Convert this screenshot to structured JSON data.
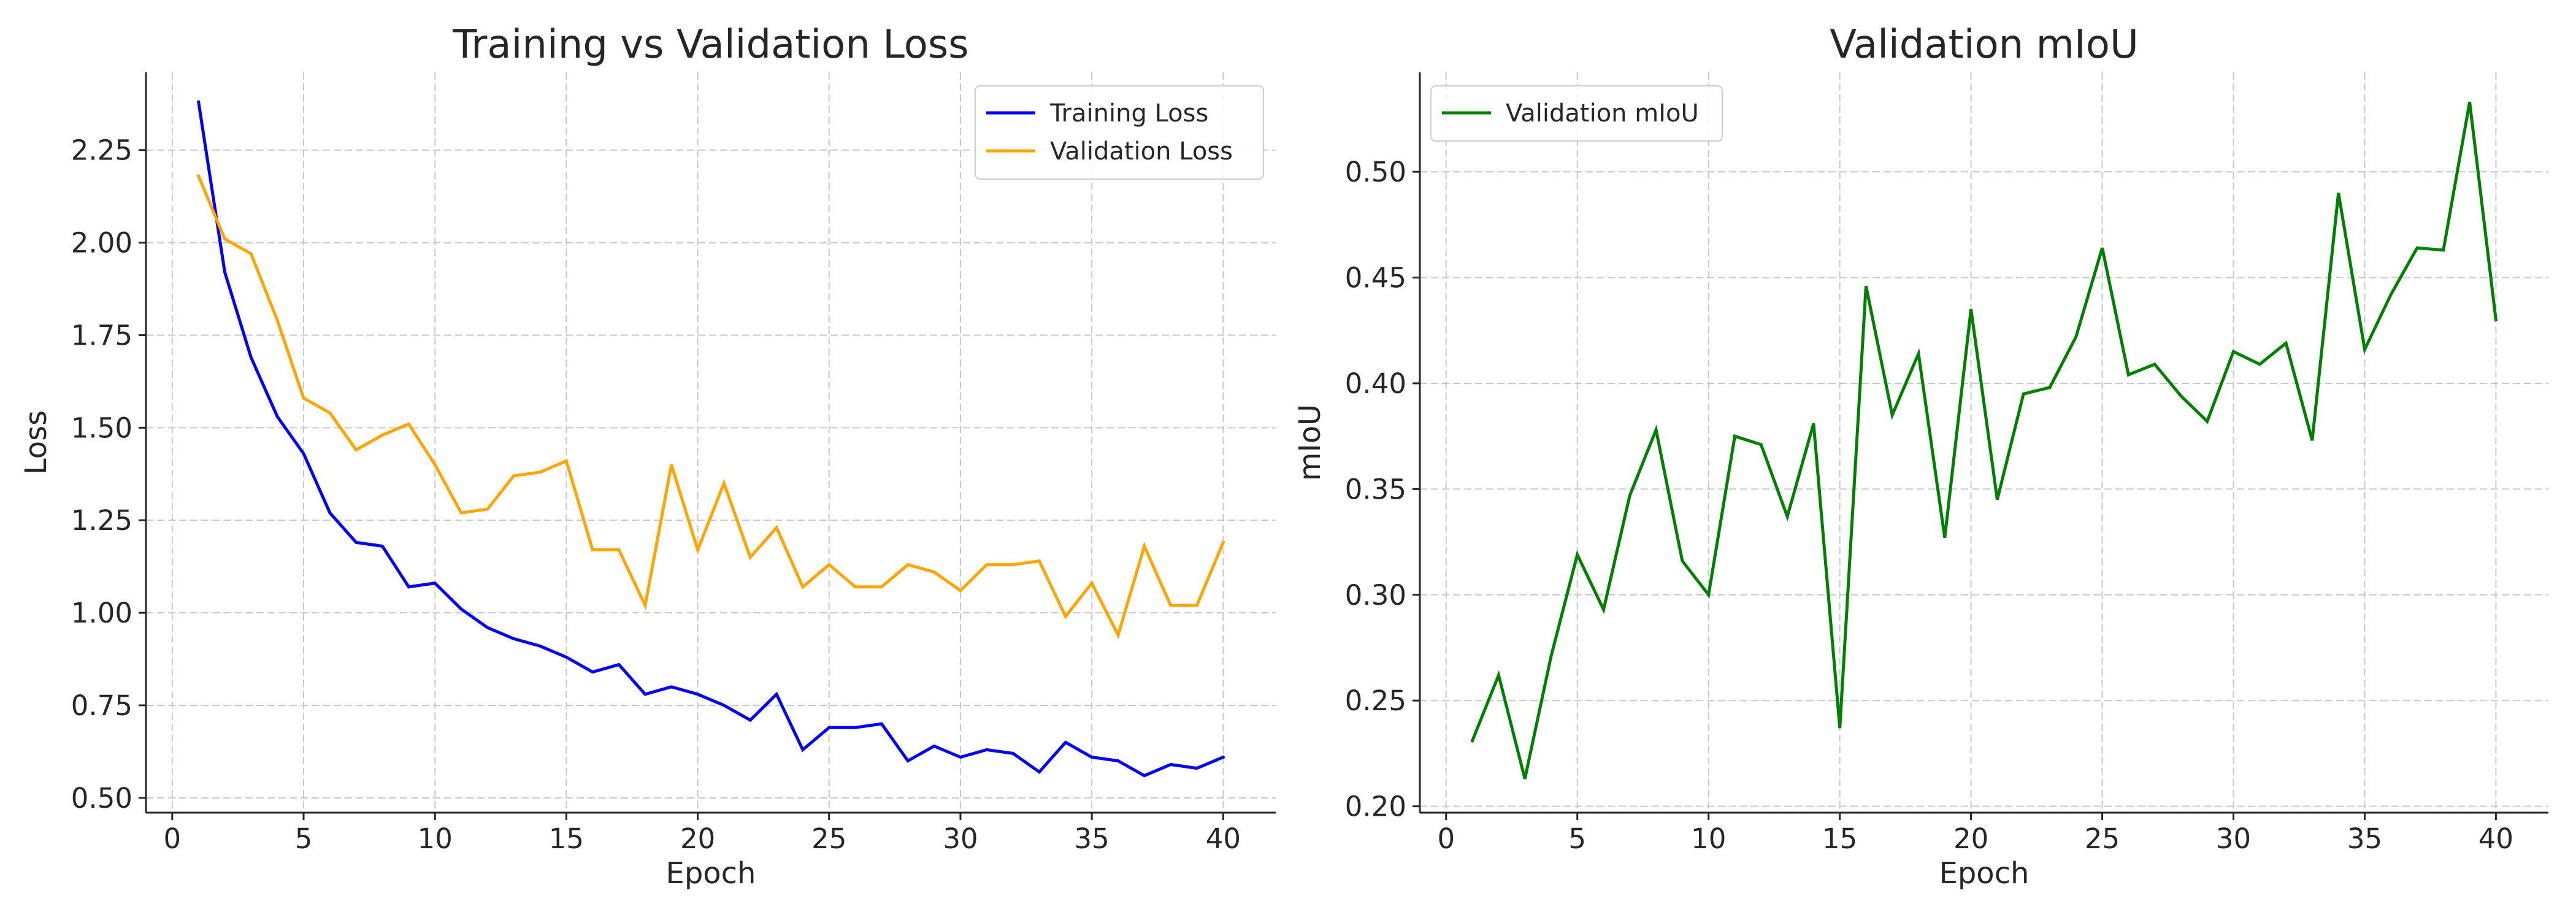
{
  "chart_data": [
    {
      "type": "line",
      "title": "Training vs Validation Loss",
      "xlabel": "Epoch",
      "ylabel": "Loss",
      "xlim": [
        -1,
        42
      ],
      "ylim": [
        0.46,
        2.46
      ],
      "xticks": [
        0,
        5,
        10,
        15,
        20,
        25,
        30,
        35,
        40
      ],
      "yticks": [
        0.5,
        0.75,
        1.0,
        1.25,
        1.5,
        1.75,
        2.0,
        2.25
      ],
      "tick_decimals": 2,
      "grid": true,
      "legend_position": "top-right",
      "x": [
        1,
        2,
        3,
        4,
        5,
        6,
        7,
        8,
        9,
        10,
        11,
        12,
        13,
        14,
        15,
        16,
        17,
        18,
        19,
        20,
        21,
        22,
        23,
        24,
        25,
        26,
        27,
        28,
        29,
        30,
        31,
        32,
        33,
        34,
        35,
        36,
        37,
        38,
        39,
        40
      ],
      "series": [
        {
          "name": "Training Loss",
          "color": "#0000ff",
          "values": [
            2.38,
            1.92,
            1.69,
            1.53,
            1.43,
            1.27,
            1.19,
            1.18,
            1.07,
            1.08,
            1.01,
            0.96,
            0.93,
            0.91,
            0.88,
            0.84,
            0.86,
            0.78,
            0.8,
            0.78,
            0.75,
            0.71,
            0.78,
            0.63,
            0.69,
            0.69,
            0.7,
            0.6,
            0.64,
            0.61,
            0.63,
            0.62,
            0.57,
            0.65,
            0.61,
            0.6,
            0.56,
            0.59,
            0.58,
            0.61
          ]
        },
        {
          "name": "Validation Loss",
          "color": "#ffa500",
          "values": [
            2.18,
            2.01,
            1.97,
            1.79,
            1.58,
            1.54,
            1.44,
            1.48,
            1.51,
            1.4,
            1.27,
            1.28,
            1.37,
            1.38,
            1.41,
            1.17,
            1.17,
            1.02,
            1.4,
            1.17,
            1.35,
            1.15,
            1.23,
            1.07,
            1.13,
            1.07,
            1.07,
            1.13,
            1.11,
            1.06,
            1.13,
            1.13,
            1.14,
            0.99,
            1.08,
            0.94,
            1.18,
            1.02,
            1.02,
            1.19
          ]
        }
      ]
    },
    {
      "type": "line",
      "title": "Validation mIoU",
      "xlabel": "Epoch",
      "ylabel": "mIoU",
      "xlim": [
        -1,
        42
      ],
      "ylim": [
        0.197,
        0.547
      ],
      "xticks": [
        0,
        5,
        10,
        15,
        20,
        25,
        30,
        35,
        40
      ],
      "yticks": [
        0.2,
        0.25,
        0.3,
        0.35,
        0.4,
        0.45,
        0.5
      ],
      "tick_decimals": 2,
      "grid": true,
      "legend_position": "top-left",
      "x": [
        1,
        2,
        3,
        4,
        5,
        6,
        7,
        8,
        9,
        10,
        11,
        12,
        13,
        14,
        15,
        16,
        17,
        18,
        19,
        20,
        21,
        22,
        23,
        24,
        25,
        26,
        27,
        28,
        29,
        30,
        31,
        32,
        33,
        34,
        35,
        36,
        37,
        38,
        39,
        40
      ],
      "series": [
        {
          "name": "Validation mIoU",
          "color": "#008000",
          "values": [
            0.231,
            0.262,
            0.213,
            0.271,
            0.319,
            0.293,
            0.347,
            0.378,
            0.316,
            0.3,
            0.375,
            0.371,
            0.337,
            0.381,
            0.237,
            0.446,
            0.385,
            0.414,
            0.327,
            0.435,
            0.345,
            0.395,
            0.398,
            0.422,
            0.464,
            0.404,
            0.409,
            0.394,
            0.382,
            0.415,
            0.409,
            0.419,
            0.373,
            0.49,
            0.416,
            0.442,
            0.464,
            0.463,
            0.533,
            0.43
          ]
        }
      ]
    }
  ]
}
